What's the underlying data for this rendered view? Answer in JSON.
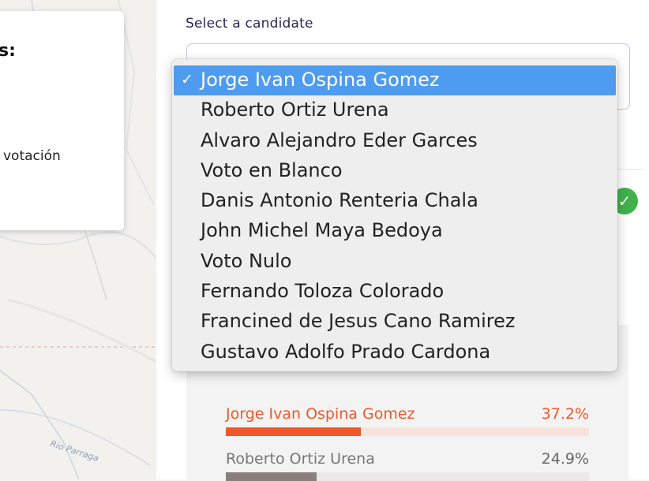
{
  "select": {
    "label": "Select a candidate",
    "options": [
      "Jorge Ivan Ospina Gomez",
      "Roberto Ortiz Urena",
      "Alvaro Alejandro Eder Garces",
      "Voto en Blanco",
      "Danis Antonio Renteria Chala",
      "John Michel Maya Bedoya",
      "Voto Nulo",
      "Fernando Toloza Colorado",
      "Francined de Jesus Cano Ramirez",
      "Gustavo Adolfo Prado Cardona"
    ],
    "selected": "Jorge Ivan Ospina Gomez",
    "check_mark": "✓"
  },
  "info_card": {
    "heading_fragment": "s:",
    "text_fragment": "votación"
  },
  "map": {
    "river_label": "Rio Parraga"
  },
  "status_icon": "check-circle-icon",
  "results": [
    {
      "name": "Jorge Ivan Ospina Gomez",
      "percent_label": "37.2%",
      "percent": 37.2,
      "color": "#f0582a"
    },
    {
      "name": "Roberto Ortiz Urena",
      "percent_label": "24.9%",
      "percent": 24.9,
      "color": "#8a7f7b"
    }
  ],
  "colors": {
    "selection_highlight": "#4d9cf0",
    "leading_candidate": "#f0582a",
    "status_green": "#3fb24a"
  }
}
